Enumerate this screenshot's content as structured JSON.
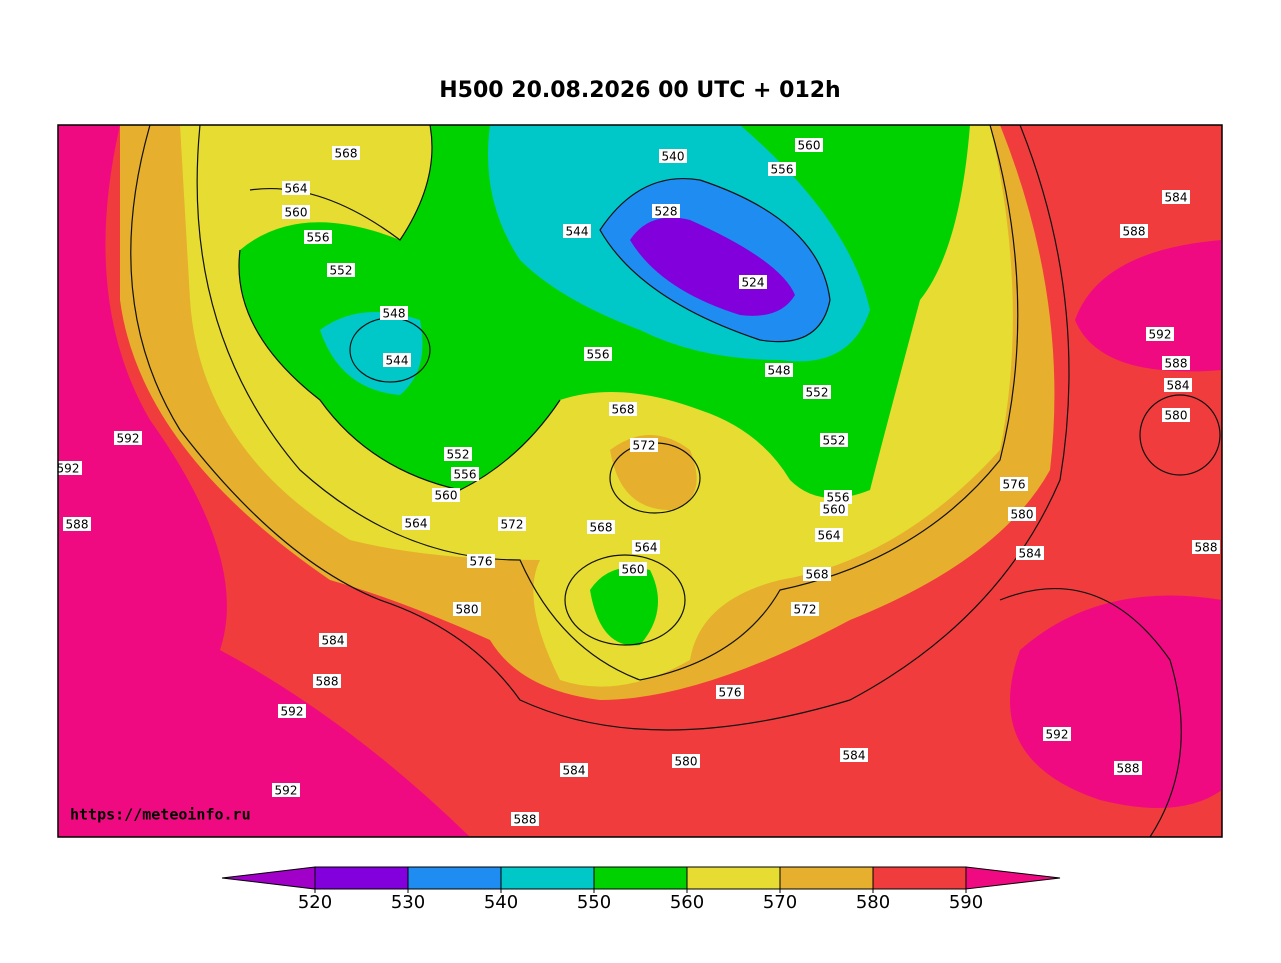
{
  "title": "H500  20.08.2026 00 UTC + 012h",
  "watermark": "https://meteoinfo.ru",
  "colorbar": {
    "ticks": [
      520,
      530,
      540,
      550,
      560,
      570,
      580,
      590
    ],
    "colors": [
      "#a000c8",
      "#8200dc",
      "#1e8cf0",
      "#00c8c8",
      "#00d200",
      "#e6dc32",
      "#e6af2d",
      "#f03c3c",
      "#f00a82"
    ]
  },
  "contour_labels": [
    568,
    564,
    560,
    556,
    552,
    548,
    544,
    556,
    544,
    540,
    528,
    524,
    560,
    556,
    548,
    552,
    552,
    556,
    560,
    564,
    568,
    572,
    576,
    580,
    584,
    588,
    592,
    592,
    588,
    584,
    580,
    576,
    572,
    564,
    560,
    556,
    552,
    568,
    572,
    568,
    564,
    560,
    592,
    592,
    588,
    584,
    588,
    592,
    588,
    584,
    580,
    588,
    576,
    580,
    584,
    592,
    588,
    584
  ]
}
